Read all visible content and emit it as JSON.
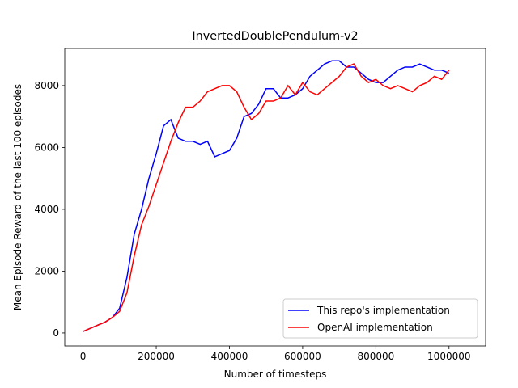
{
  "chart_data": {
    "type": "line",
    "title": "InvertedDoublePendulum-v2",
    "xlabel": "Number of timesteps",
    "ylabel": "Mean Episode Reward of the last 100 episodes",
    "x": [
      0,
      20000,
      40000,
      60000,
      80000,
      100000,
      120000,
      140000,
      160000,
      180000,
      200000,
      220000,
      240000,
      260000,
      280000,
      300000,
      320000,
      340000,
      360000,
      380000,
      400000,
      420000,
      440000,
      460000,
      480000,
      500000,
      520000,
      540000,
      560000,
      580000,
      600000,
      620000,
      640000,
      660000,
      680000,
      700000,
      720000,
      740000,
      760000,
      780000,
      800000,
      820000,
      840000,
      860000,
      880000,
      900000,
      920000,
      940000,
      960000,
      980000,
      1000000
    ],
    "series": [
      {
        "name": "This repo's implementation",
        "color": "#0000ff",
        "values": [
          50,
          150,
          250,
          350,
          500,
          800,
          1800,
          3200,
          4000,
          5000,
          5800,
          6700,
          6900,
          6300,
          6200,
          6200,
          6100,
          6200,
          5700,
          5800,
          5900,
          6300,
          7000,
          7100,
          7400,
          7900,
          7900,
          7600,
          7600,
          7700,
          7900,
          8300,
          8500,
          8700,
          8800,
          8800,
          8600,
          8600,
          8400,
          8200,
          8100,
          8100,
          8300,
          8500,
          8600,
          8600,
          8700,
          8600,
          8500,
          8500,
          8400
        ]
      },
      {
        "name": "OpenAI implementation",
        "color": "#ff0000",
        "values": [
          50,
          150,
          250,
          350,
          500,
          700,
          1300,
          2500,
          3500,
          4100,
          4800,
          5500,
          6200,
          6800,
          7300,
          7300,
          7500,
          7800,
          7900,
          8000,
          8000,
          7800,
          7300,
          6900,
          7100,
          7500,
          7500,
          7600,
          8000,
          7700,
          8100,
          7800,
          7700,
          7900,
          8100,
          8300,
          8600,
          8700,
          8300,
          8100,
          8200,
          8000,
          7900,
          8000,
          7900,
          7800,
          8000,
          8100,
          8300,
          8200,
          8500
        ]
      }
    ],
    "xlim": [
      -50000,
      1100000
    ],
    "ylim": [
      -420,
      9200
    ],
    "xticks": [
      0,
      200000,
      400000,
      600000,
      800000,
      1000000
    ],
    "yticks": [
      0,
      2000,
      4000,
      6000,
      8000
    ],
    "legend": "lower right"
  }
}
